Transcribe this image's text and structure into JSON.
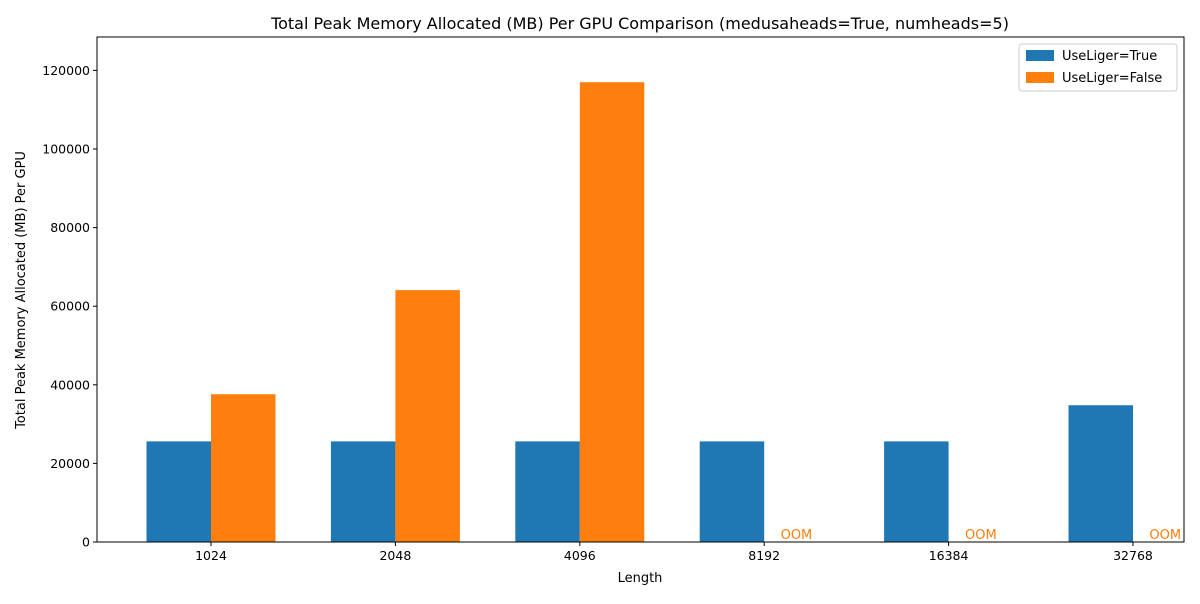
{
  "chart_data": {
    "type": "bar",
    "title": "Total Peak Memory Allocated (MB) Per GPU Comparison (medusaheads=True, numheads=5)",
    "xlabel": "Length",
    "ylabel": "Total Peak Memory Allocated (MB) Per GPU",
    "categories": [
      "1024",
      "2048",
      "4096",
      "8192",
      "16384",
      "32768"
    ],
    "ylim": [
      0,
      128500
    ],
    "yticks": [
      0,
      20000,
      40000,
      60000,
      80000,
      100000,
      120000
    ],
    "grid": false,
    "legend_position": "top-right",
    "series": [
      {
        "name": "UseLiger=True",
        "color": "#1f77b4",
        "values": [
          25600,
          25600,
          25600,
          25600,
          25600,
          34800
        ]
      },
      {
        "name": "UseLiger=False",
        "color": "#ff7f0e",
        "values": [
          37600,
          64100,
          117000,
          null,
          null,
          null
        ]
      }
    ],
    "annotations": [
      {
        "category": "8192",
        "series": "UseLiger=False",
        "text": "OOM"
      },
      {
        "category": "16384",
        "series": "UseLiger=False",
        "text": "OOM"
      },
      {
        "category": "32768",
        "series": "UseLiger=False",
        "text": "OOM"
      }
    ]
  }
}
